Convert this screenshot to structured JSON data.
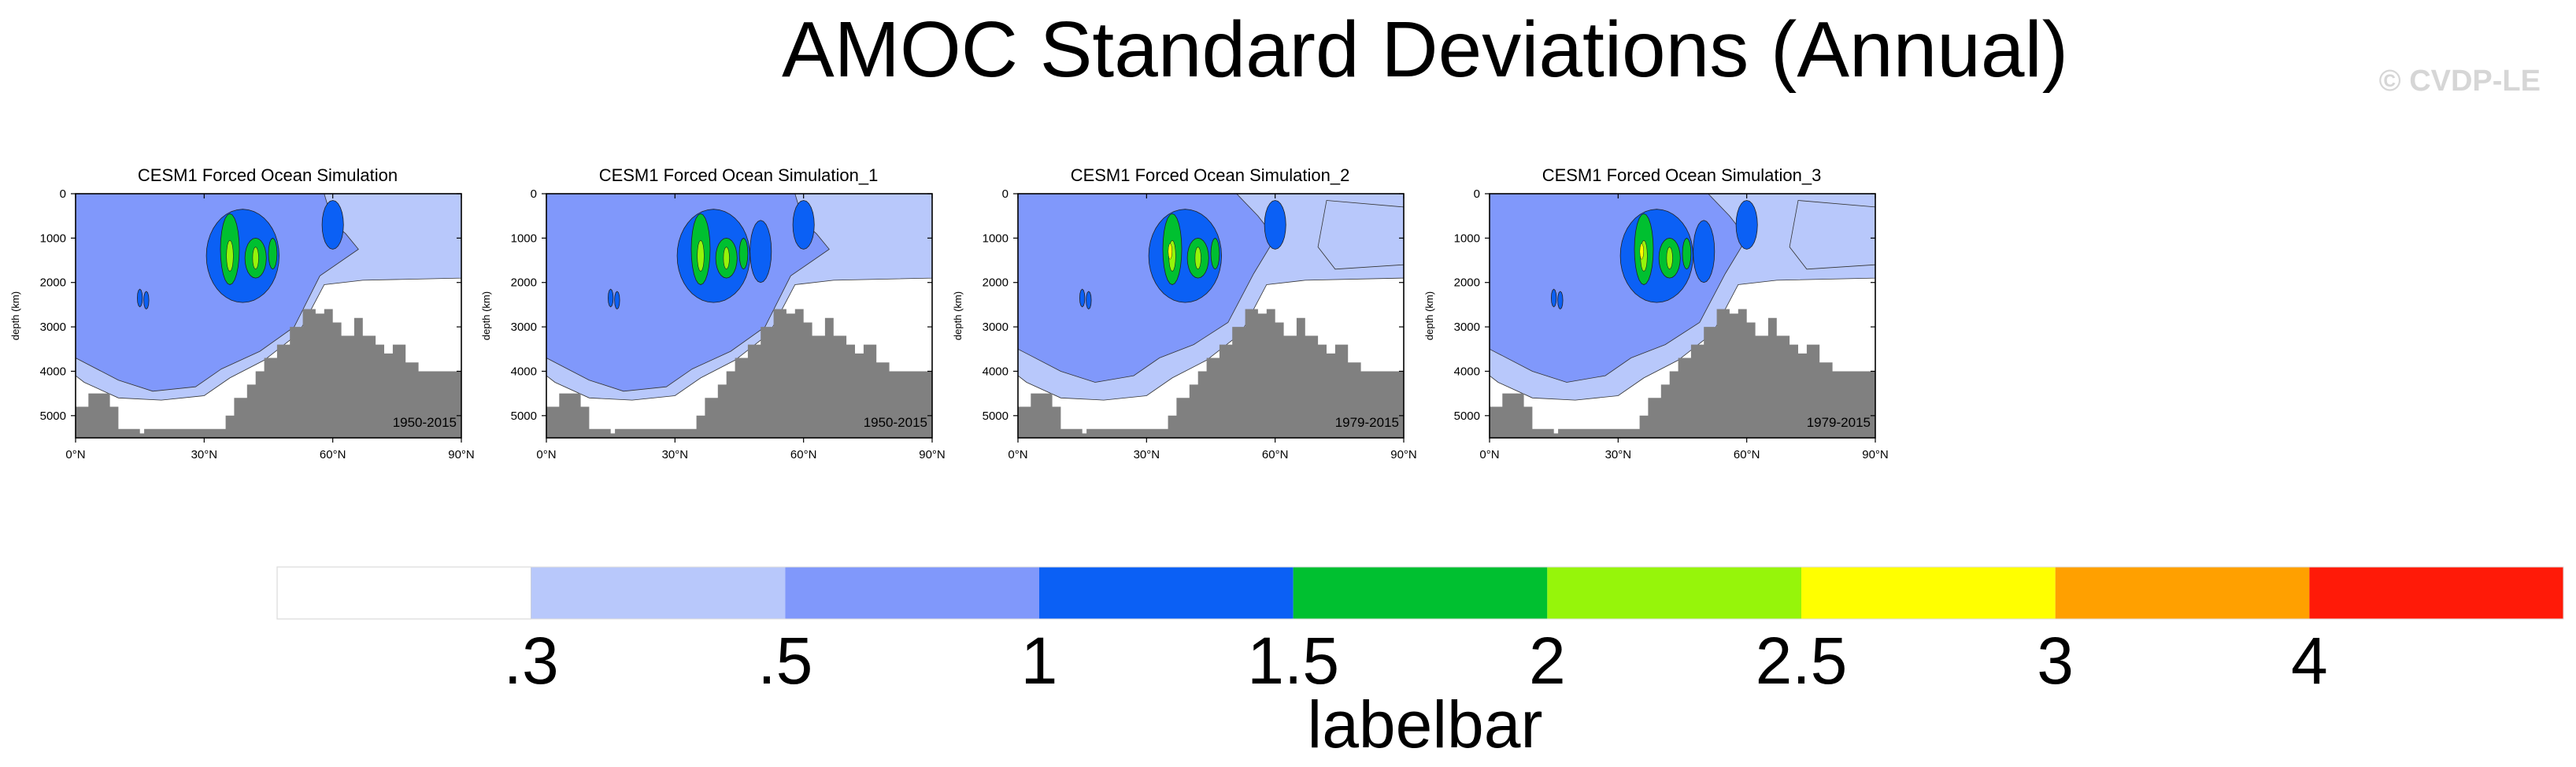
{
  "title": "AMOC Standard Deviations (Annual)",
  "watermark": "© CVDP-LE",
  "colors": {
    "levels": [
      "#ffffff",
      "#b8c8fb",
      "#8098fb",
      "#0b60f5",
      "#00c030",
      "#96f50a",
      "#ffff00",
      "#ffa000",
      "#ff1a08"
    ],
    "terrain": "#808080",
    "frame": "#000000"
  },
  "chart_data": {
    "type": "contour",
    "xlabel": "",
    "ylabel": "depth (km)",
    "xlim": [
      0,
      90
    ],
    "ylim": [
      5500,
      0
    ],
    "x_ticks": [
      "0°N",
      "30°N",
      "60°N",
      "90°N"
    ],
    "x_tick_values": [
      0,
      30,
      60,
      90
    ],
    "y_ticks": [
      "0",
      "1000",
      "2000",
      "3000",
      "4000",
      "5000"
    ],
    "y_tick_values": [
      0,
      1000,
      2000,
      3000,
      4000,
      5000
    ],
    "contour_levels": [
      0.3,
      0.5,
      1,
      1.5,
      2,
      2.5,
      3,
      4
    ],
    "panels": [
      {
        "title": "CESM1 Forced Ocean Simulation",
        "period": "1950-2015"
      },
      {
        "title": "CESM1 Forced Ocean Simulation_1",
        "period": "1950-2015"
      },
      {
        "title": "CESM1 Forced Ocean Simulation_2",
        "period": "1979-2015"
      },
      {
        "title": "CESM1 Forced Ocean Simulation_3",
        "period": "1979-2015"
      }
    ],
    "labelbar": {
      "tick_labels": [
        ".3",
        ".5",
        "1",
        "1.5",
        "2",
        "2.5",
        "3",
        "4"
      ],
      "title": "labelbar"
    }
  }
}
